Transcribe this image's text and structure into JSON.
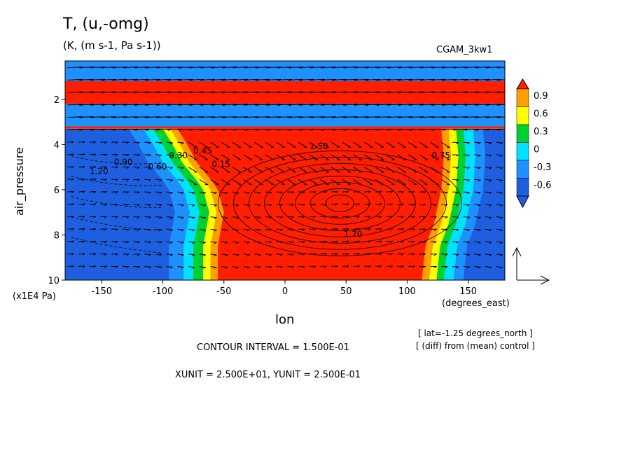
{
  "chart_data": {
    "type": "heatmap",
    "title": "T, (u,-omg)",
    "subtitle": "(K, (m s-1, Pa s-1))",
    "run_name": "CGAM_3kw1",
    "xlabel": "lon",
    "xunit": "(degrees_east)",
    "ylabel": "air_pressure",
    "yunit": "(x1E4 Pa)",
    "xlim": [
      -180,
      180
    ],
    "ylim": [
      10,
      0.3
    ],
    "x_ticks": [
      -150,
      -100,
      -50,
      0,
      50,
      100,
      150
    ],
    "y_ticks": [
      2,
      4,
      6,
      8,
      10
    ],
    "x_tick_labels": [
      "-150",
      "-100",
      "-50",
      "0",
      "50",
      "100",
      "150"
    ],
    "y_tick_labels": [
      "2",
      "4",
      "6",
      "8",
      "10"
    ],
    "colorbar": {
      "levels": [
        -0.6,
        -0.3,
        0,
        0.3,
        0.6,
        0.9
      ],
      "labels": [
        "0.9",
        "0.6",
        "0.3",
        "0",
        "-0.3",
        "-0.6"
      ],
      "colors": [
        "#1e5fe0",
        "#1e90ff",
        "#00e0ff",
        "#00d030",
        "#ffff00",
        "#ffa000",
        "#ff1e00"
      ]
    },
    "contour_labels": [
      "1.50",
      "0.60",
      "0.30",
      "0.45",
      "0.15",
      "1.70",
      "1.20",
      "0.90",
      "0.75"
    ],
    "notes": [
      "[ lat=-1.25 degrees_north ]",
      "[ (diff) from (mean) control ]"
    ],
    "contour_interval": "CONTOUR INTERVAL = 1.500E-01",
    "vector_units": "XUNIT = 2.500E+01, YUNIT = 2.500E-01"
  }
}
